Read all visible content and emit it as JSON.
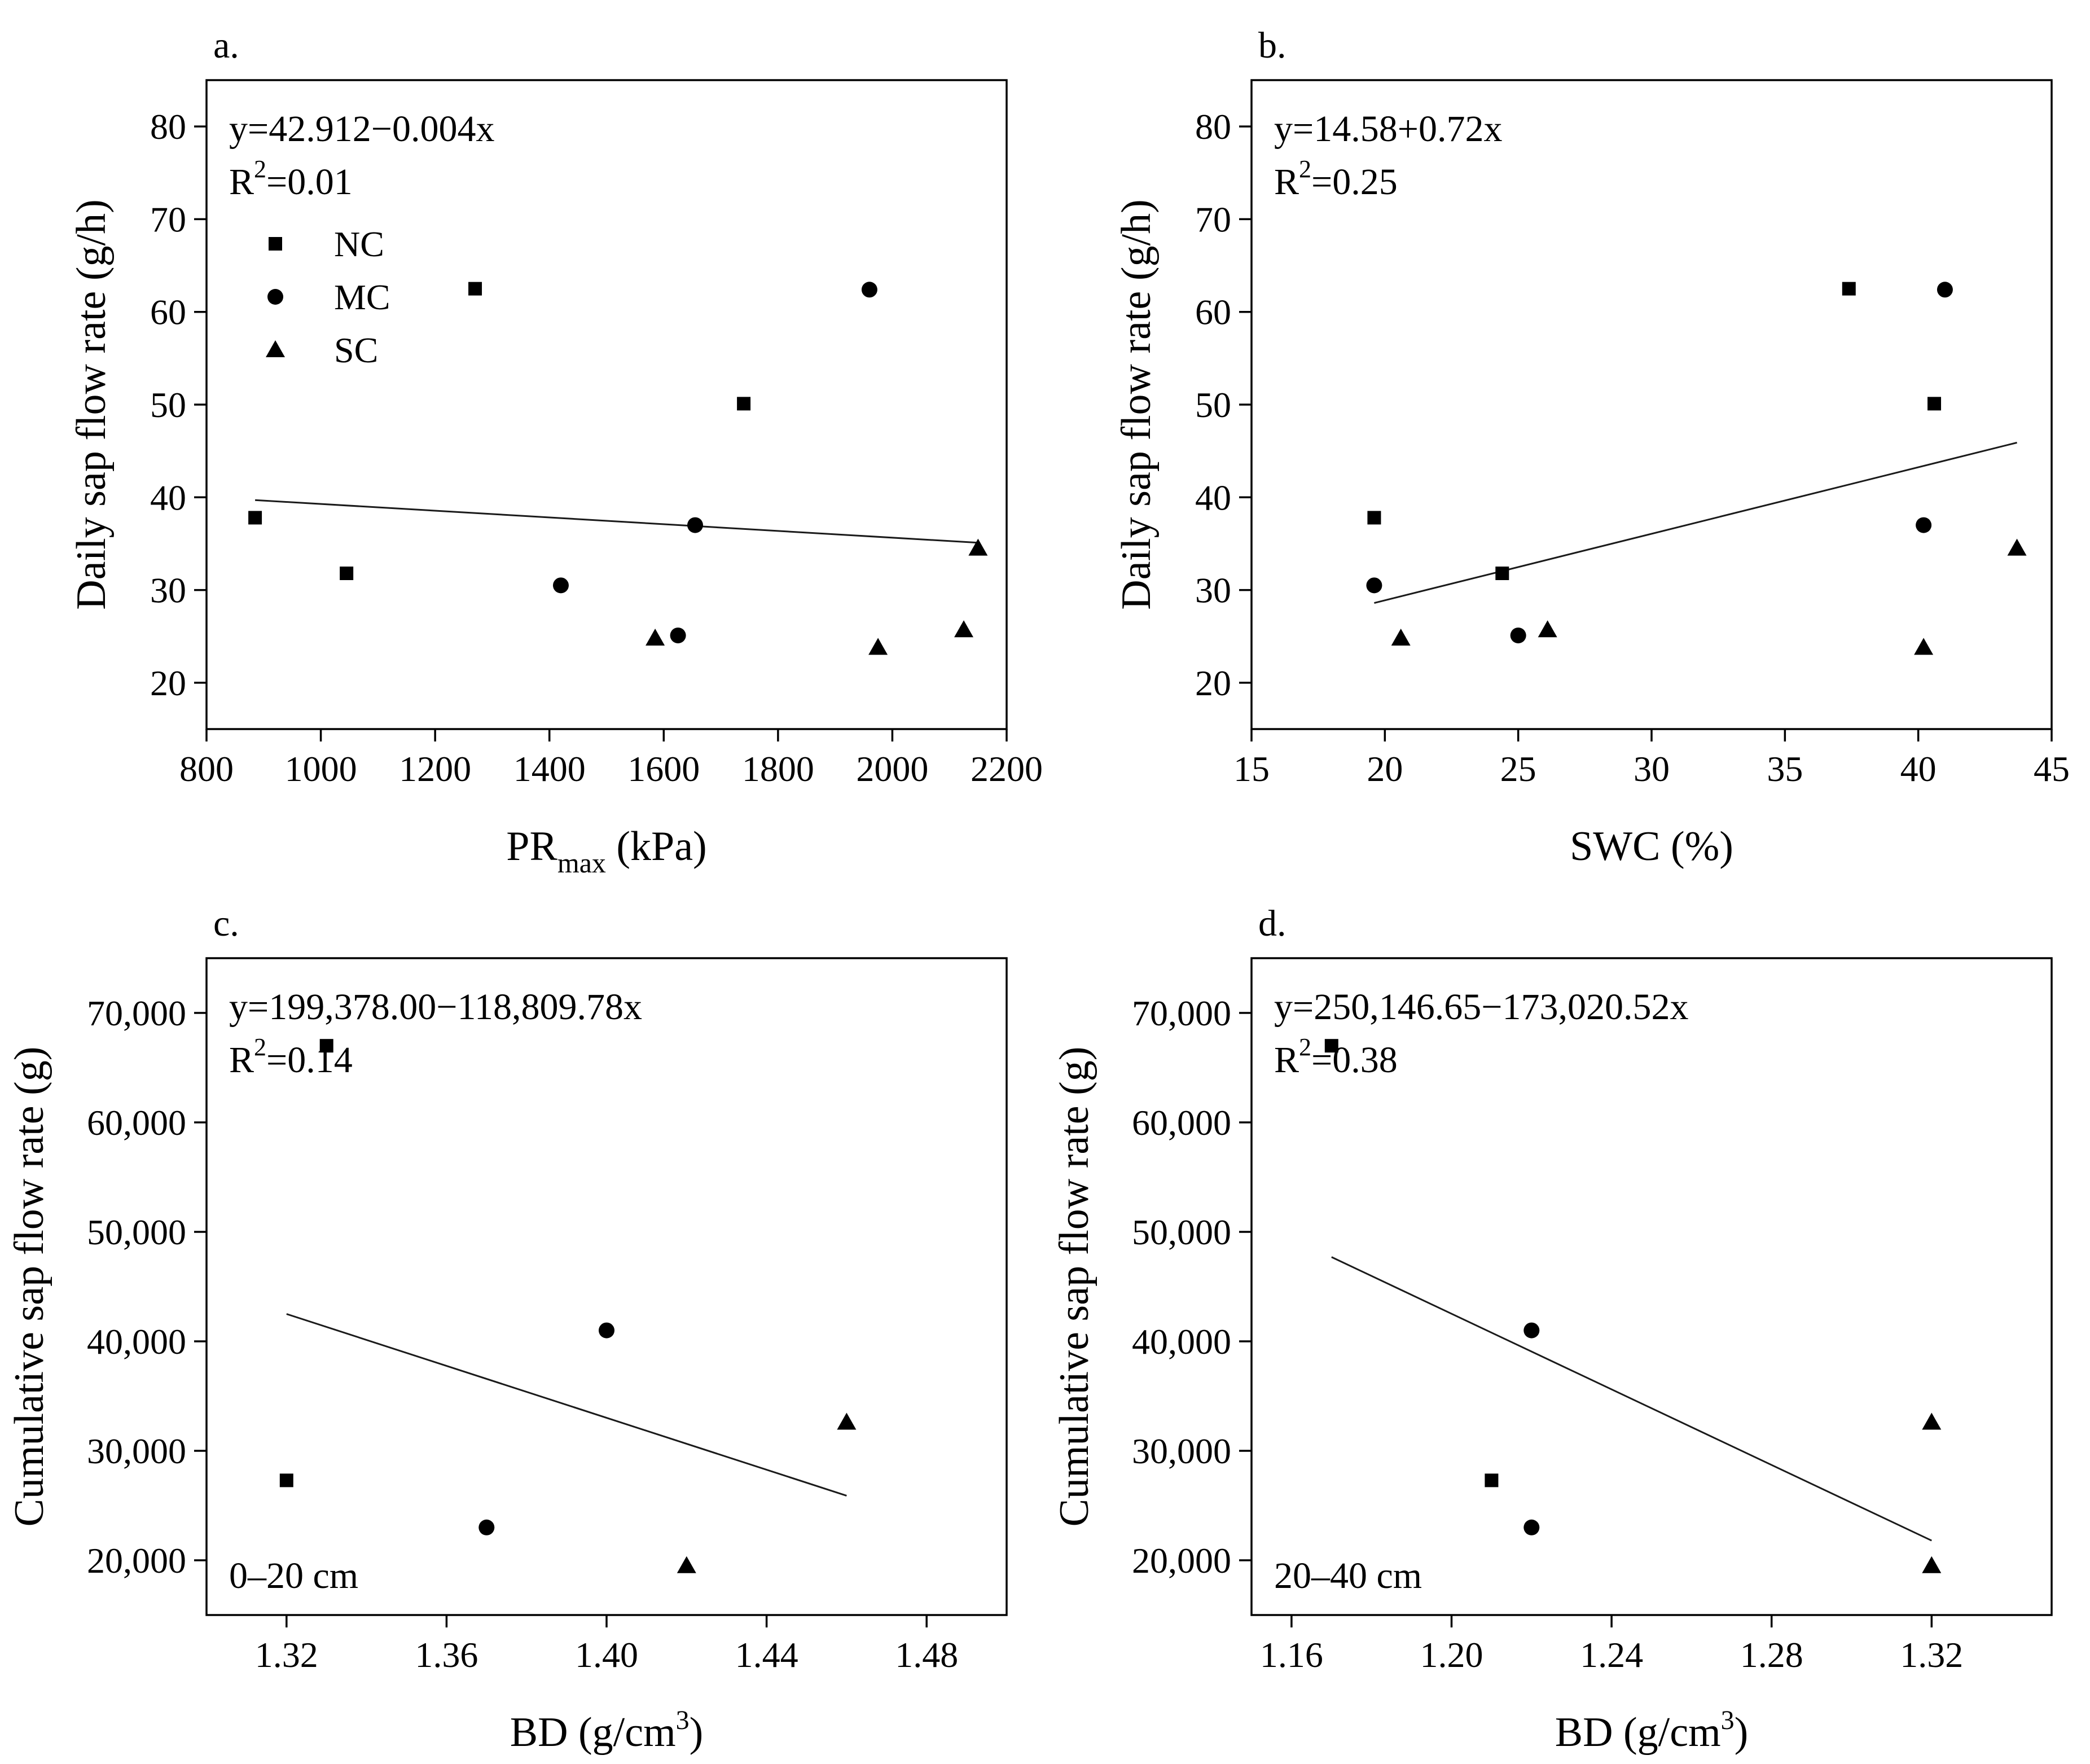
{
  "chart_data": [
    {
      "id": "a",
      "type": "scatter",
      "panel_label": "a.",
      "xlabel": {
        "main": "PR",
        "sub": "max",
        "rest": " (kPa)"
      },
      "ylabel": "Daily sap flow rate (g/h)",
      "xlim": [
        800,
        2200
      ],
      "ylim": [
        15,
        85
      ],
      "xticks": [
        800,
        1000,
        1200,
        1400,
        1600,
        1800,
        2000,
        2200
      ],
      "yticks": [
        20,
        30,
        40,
        50,
        60,
        70,
        80
      ],
      "xticklabels": [
        "800",
        "1000",
        "1200",
        "1400",
        "1600",
        "1800",
        "2000",
        "2200"
      ],
      "yticklabels": [
        "20",
        "30",
        "40",
        "50",
        "60",
        "70",
        "80"
      ],
      "equation": "y=42.912−0.004x",
      "r2_prefix": "R",
      "r2_sup": "2",
      "r2_value": "=0.01",
      "fit_line": {
        "x": [
          885,
          2150
        ],
        "y": [
          39.7,
          35.1
        ]
      },
      "legend": [
        {
          "name": "NC",
          "marker": "square"
        },
        {
          "name": "MC",
          "marker": "circle"
        },
        {
          "name": "SC",
          "marker": "triangle"
        }
      ],
      "series": [
        {
          "name": "NC",
          "marker": "square",
          "points": [
            [
              885,
              37.8
            ],
            [
              1045,
              31.8
            ],
            [
              1270,
              62.5
            ],
            [
              1740,
              50.1
            ]
          ]
        },
        {
          "name": "MC",
          "marker": "circle",
          "points": [
            [
              1420,
              30.5
            ],
            [
              1625,
              25.1
            ],
            [
              1655,
              37.0
            ],
            [
              1960,
              62.4
            ]
          ]
        },
        {
          "name": "SC",
          "marker": "triangle",
          "points": [
            [
              1585,
              24.8
            ],
            [
              1975,
              23.8
            ],
            [
              2125,
              25.7
            ],
            [
              2150,
              34.5
            ]
          ]
        }
      ]
    },
    {
      "id": "b",
      "type": "scatter",
      "panel_label": "b.",
      "xlabel": {
        "main": "SWC (%)",
        "sub": "",
        "rest": ""
      },
      "ylabel": "Daily sap flow rate (g/h)",
      "xlim": [
        15,
        45
      ],
      "ylim": [
        15,
        85
      ],
      "xticks": [
        15,
        20,
        25,
        30,
        35,
        40,
        45
      ],
      "yticks": [
        20,
        30,
        40,
        50,
        60,
        70,
        80
      ],
      "xticklabels": [
        "15",
        "20",
        "25",
        "30",
        "35",
        "40",
        "45"
      ],
      "yticklabels": [
        "20",
        "30",
        "40",
        "50",
        "60",
        "70",
        "80"
      ],
      "equation": "y=14.58+0.72x",
      "r2_prefix": "R",
      "r2_sup": "2",
      "r2_value": "=0.25",
      "fit_line": {
        "x": [
          19.6,
          43.7
        ],
        "y": [
          28.6,
          45.9
        ]
      },
      "series": [
        {
          "name": "NC",
          "marker": "square",
          "points": [
            [
              19.6,
              37.8
            ],
            [
              24.4,
              31.8
            ],
            [
              37.4,
              62.5
            ],
            [
              40.6,
              50.1
            ]
          ]
        },
        {
          "name": "MC",
          "marker": "circle",
          "points": [
            [
              19.6,
              30.5
            ],
            [
              25.0,
              25.1
            ],
            [
              40.2,
              37.0
            ],
            [
              41.0,
              62.4
            ]
          ]
        },
        {
          "name": "SC",
          "marker": "triangle",
          "points": [
            [
              20.6,
              24.8
            ],
            [
              26.1,
              25.7
            ],
            [
              40.2,
              23.8
            ],
            [
              43.7,
              34.5
            ]
          ]
        }
      ]
    },
    {
      "id": "c",
      "type": "scatter",
      "panel_label": "c.",
      "xlabel": {
        "main": "BD (g/cm",
        "sup": "3",
        "rest": ")"
      },
      "ylabel": "Cumulative sap flow rate (g)",
      "xlim": [
        1.3,
        1.5
      ],
      "ylim": [
        15000,
        75000
      ],
      "xticks": [
        1.32,
        1.36,
        1.4,
        1.44,
        1.48
      ],
      "yticks": [
        20000,
        30000,
        40000,
        50000,
        60000,
        70000
      ],
      "xticklabels": [
        "1.32",
        "1.36",
        "1.40",
        "1.44",
        "1.48"
      ],
      "yticklabels": [
        "20,000",
        "30,000",
        "40,000",
        "50,000",
        "60,000",
        "70,000"
      ],
      "equation": "y=199,378.00−118,809.78x",
      "r2_prefix": "R",
      "r2_sup": "2",
      "r2_value": "=0.14",
      "annotation": "0–20 cm",
      "fit_line": {
        "x": [
          1.32,
          1.46
        ],
        "y": [
          42500,
          25900
        ]
      },
      "series": [
        {
          "name": "NC",
          "marker": "square",
          "points": [
            [
              1.32,
              27300
            ],
            [
              1.33,
              67000
            ]
          ]
        },
        {
          "name": "MC",
          "marker": "circle",
          "points": [
            [
              1.37,
              23000
            ],
            [
              1.4,
              41000
            ]
          ]
        },
        {
          "name": "SC",
          "marker": "triangle",
          "points": [
            [
              1.42,
              19500
            ],
            [
              1.46,
              32600
            ]
          ]
        }
      ]
    },
    {
      "id": "d",
      "type": "scatter",
      "panel_label": "d.",
      "xlabel": {
        "main": "BD (g/cm",
        "sup": "3",
        "rest": ")"
      },
      "ylabel": "Cumulative sap flow rate (g)",
      "xlim": [
        1.15,
        1.35
      ],
      "ylim": [
        15000,
        75000
      ],
      "xticks": [
        1.16,
        1.2,
        1.24,
        1.28,
        1.32
      ],
      "yticks": [
        20000,
        30000,
        40000,
        50000,
        60000,
        70000
      ],
      "xticklabels": [
        "1.16",
        "1.20",
        "1.24",
        "1.28",
        "1.32"
      ],
      "yticklabels": [
        "20,000",
        "30,000",
        "40,000",
        "50,000",
        "60,000",
        "70,000"
      ],
      "equation": "y=250,146.65−173,020.52x",
      "r2_prefix": "R",
      "r2_sup": "2",
      "r2_value": "=0.38",
      "annotation": "20–40 cm",
      "fit_line": {
        "x": [
          1.17,
          1.32
        ],
        "y": [
          47700,
          21800
        ]
      },
      "series": [
        {
          "name": "NC",
          "marker": "square",
          "points": [
            [
              1.21,
              27300
            ],
            [
              1.17,
              67000
            ]
          ]
        },
        {
          "name": "MC",
          "marker": "circle",
          "points": [
            [
              1.22,
              23000
            ],
            [
              1.22,
              41000
            ]
          ]
        },
        {
          "name": "SC",
          "marker": "triangle",
          "points": [
            [
              1.32,
              19500
            ],
            [
              1.32,
              32600
            ]
          ]
        }
      ]
    }
  ]
}
